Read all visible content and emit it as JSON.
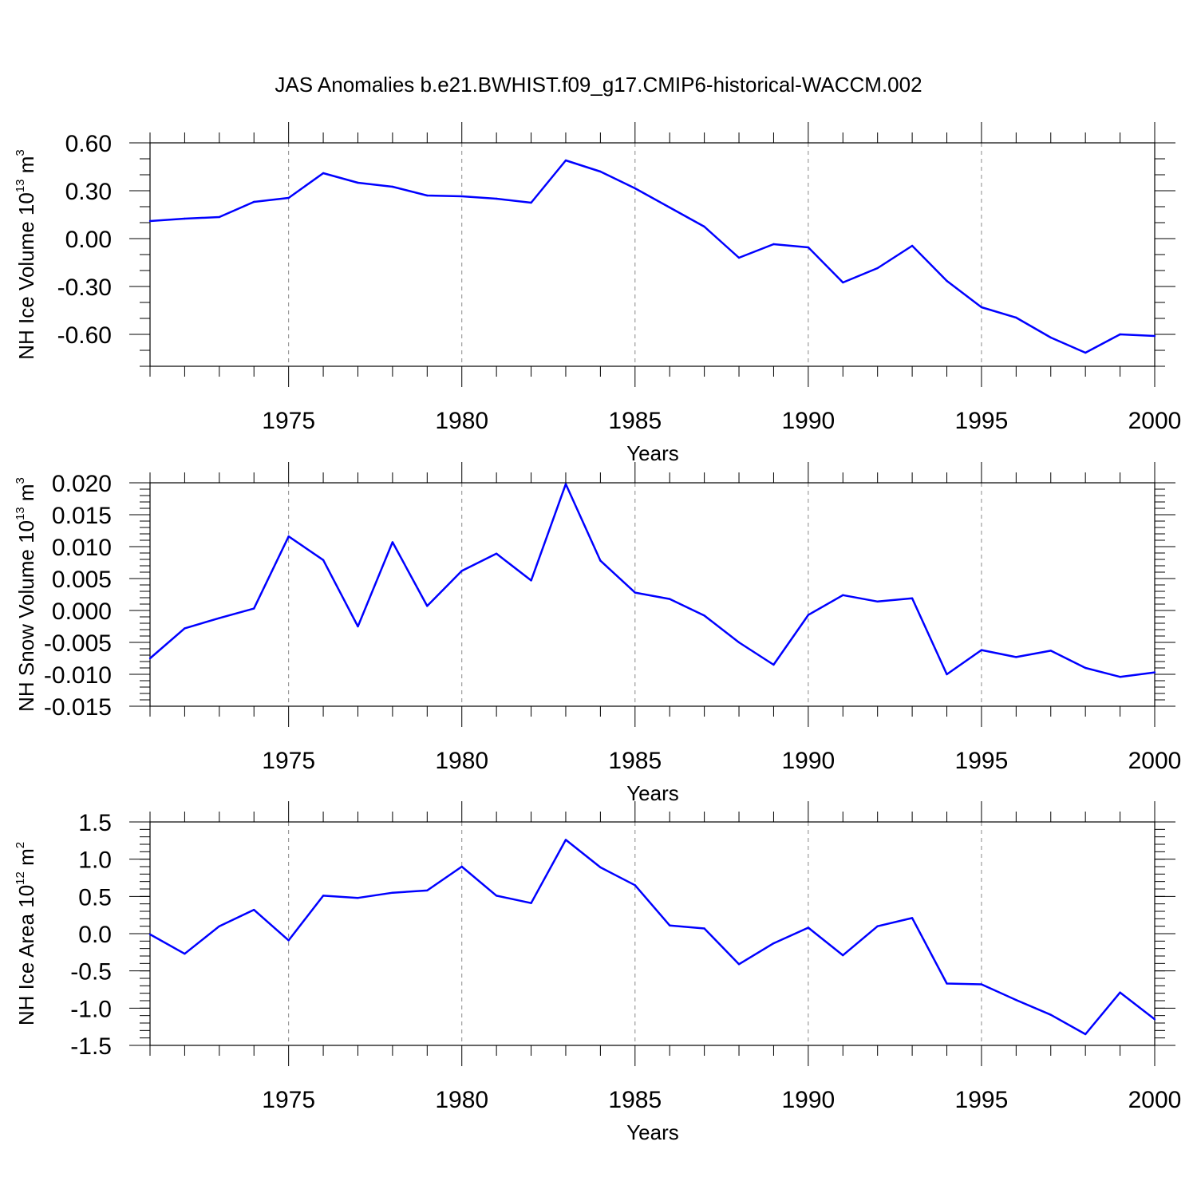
{
  "title": "JAS Anomalies b.e21.BWHIST.f09_g17.CMIP6-historical-WACCM.002",
  "colors": {
    "line": "#0000ff",
    "axis": "#000000",
    "grid": "#888888",
    "background": "#ffffff"
  },
  "chart_data": [
    {
      "type": "line",
      "title": "JAS Anomalies b.e21.BWHIST.f09_g17.CMIP6-historical-WACCM.002",
      "xlabel": "Years",
      "ylabel_main": "NH Ice Volume 10",
      "ylabel_exp": "13",
      "ylabel_unit": " m",
      "ylabel_unit_exp": "3",
      "xlim": [
        1971,
        2000
      ],
      "ylim": [
        -0.8,
        0.6
      ],
      "yticks": [
        0.6,
        0.3,
        0.0,
        -0.3,
        -0.6
      ],
      "ytick_labels": [
        "0.60",
        "0.30",
        "0.00",
        "-0.30",
        "-0.60"
      ],
      "yminor_step": 0.1,
      "xticks": [
        1975,
        1980,
        1985,
        1990,
        1995,
        2000
      ],
      "xtick_labels": [
        "1975",
        "1980",
        "1985",
        "1990",
        "1995",
        "2000"
      ],
      "grid": "vertical dashed at major x ticks",
      "x": [
        1971,
        1972,
        1973,
        1974,
        1975,
        1976,
        1977,
        1978,
        1979,
        1980,
        1981,
        1982,
        1983,
        1984,
        1985,
        1986,
        1987,
        1988,
        1989,
        1990,
        1991,
        1992,
        1993,
        1994,
        1995,
        1996,
        1997,
        1998,
        1999,
        2000
      ],
      "y": [
        0.11,
        0.125,
        0.135,
        0.23,
        0.255,
        0.41,
        0.35,
        0.325,
        0.27,
        0.265,
        0.25,
        0.225,
        0.49,
        0.42,
        0.315,
        0.195,
        0.075,
        -0.12,
        -0.035,
        -0.055,
        -0.275,
        -0.185,
        -0.045,
        -0.265,
        -0.43,
        -0.495,
        -0.62,
        -0.715,
        -0.6,
        -0.61
      ]
    },
    {
      "type": "line",
      "xlabel": "Years",
      "ylabel_main": "NH Snow Volume 10",
      "ylabel_exp": "13",
      "ylabel_unit": " m",
      "ylabel_unit_exp": "3",
      "xlim": [
        1971,
        2000
      ],
      "ylim": [
        -0.015,
        0.02
      ],
      "yticks": [
        0.02,
        0.015,
        0.01,
        0.005,
        0.0,
        -0.005,
        -0.01,
        -0.015
      ],
      "ytick_labels": [
        "0.020",
        "0.015",
        "0.010",
        "0.005",
        "0.000",
        "-0.005",
        "-0.010",
        "-0.015"
      ],
      "yminor_step": 0.001,
      "xticks": [
        1975,
        1980,
        1985,
        1990,
        1995,
        2000
      ],
      "xtick_labels": [
        "1975",
        "1980",
        "1985",
        "1990",
        "1995",
        "2000"
      ],
      "grid": "vertical dashed at major x ticks",
      "x": [
        1971,
        1972,
        1973,
        1974,
        1975,
        1976,
        1977,
        1978,
        1979,
        1980,
        1981,
        1982,
        1983,
        1984,
        1985,
        1986,
        1987,
        1988,
        1989,
        1990,
        1991,
        1992,
        1993,
        1994,
        1995,
        1996,
        1997,
        1998,
        1999,
        2000
      ],
      "y": [
        -0.0075,
        -0.0028,
        -0.0012,
        0.0003,
        0.0116,
        0.0079,
        -0.0025,
        0.0107,
        0.0007,
        0.0062,
        0.0089,
        0.0047,
        0.0198,
        0.0078,
        0.0028,
        0.0018,
        -0.0008,
        -0.005,
        -0.0085,
        -0.0007,
        0.0024,
        0.0014,
        0.0019,
        -0.01,
        -0.0062,
        -0.0073,
        -0.0063,
        -0.009,
        -0.0104,
        -0.0097
      ]
    },
    {
      "type": "line",
      "xlabel": "Years",
      "ylabel_main": "NH Ice Area 10",
      "ylabel_exp": "12",
      "ylabel_unit": " m",
      "ylabel_unit_exp": "2",
      "xlim": [
        1971,
        2000
      ],
      "ylim": [
        -1.5,
        1.5
      ],
      "yticks": [
        1.5,
        1.0,
        0.5,
        0.0,
        -0.5,
        -1.0,
        -1.5
      ],
      "ytick_labels": [
        "1.5",
        "1.0",
        "0.5",
        "0.0",
        "-0.5",
        "-1.0",
        "-1.5"
      ],
      "yminor_step": 0.1,
      "xticks": [
        1975,
        1980,
        1985,
        1990,
        1995,
        2000
      ],
      "xtick_labels": [
        "1975",
        "1980",
        "1985",
        "1990",
        "1995",
        "2000"
      ],
      "grid": "vertical dashed at major x ticks",
      "x": [
        1971,
        1972,
        1973,
        1974,
        1975,
        1976,
        1977,
        1978,
        1979,
        1980,
        1981,
        1982,
        1983,
        1984,
        1985,
        1986,
        1987,
        1988,
        1989,
        1990,
        1991,
        1992,
        1993,
        1994,
        1995,
        1996,
        1997,
        1998,
        1999,
        2000
      ],
      "y": [
        -0.01,
        -0.27,
        0.1,
        0.32,
        -0.09,
        0.51,
        0.48,
        0.55,
        0.58,
        0.9,
        0.51,
        0.41,
        1.26,
        0.89,
        0.65,
        0.11,
        0.07,
        -0.41,
        -0.13,
        0.08,
        -0.29,
        0.1,
        0.21,
        -0.67,
        -0.68,
        -0.89,
        -1.09,
        -1.35,
        -0.79,
        -1.15
      ]
    }
  ]
}
